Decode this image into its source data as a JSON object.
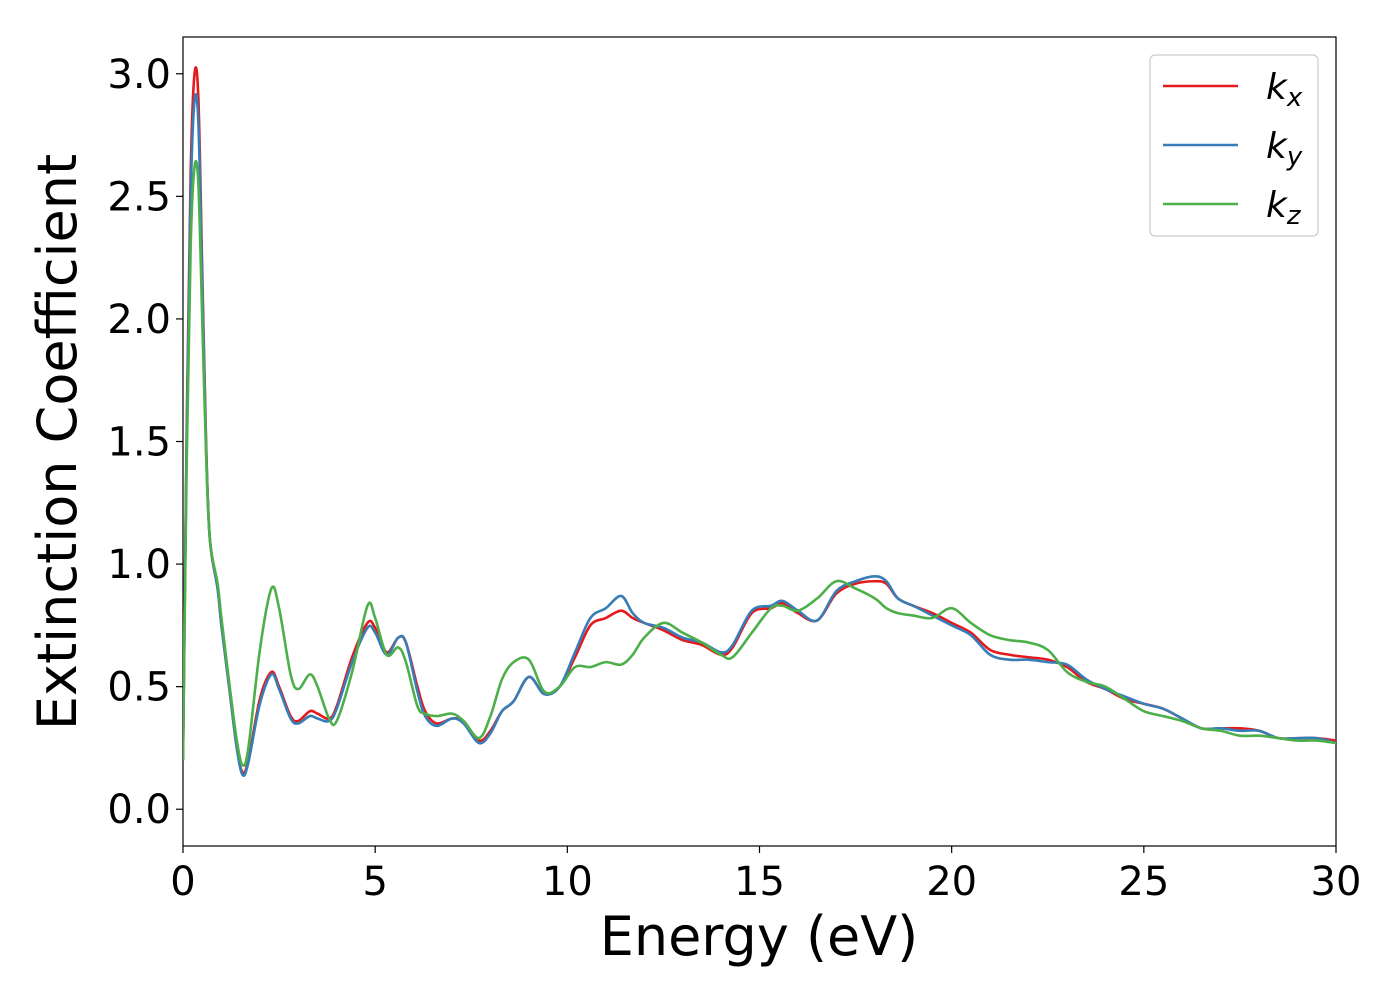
{
  "chart_data": {
    "type": "line",
    "title": "",
    "xlabel": "Energy (eV)",
    "ylabel": "Extinction Coefficient",
    "xlim": [
      0,
      30
    ],
    "ylim": [
      -0.15,
      3.15
    ],
    "xticks": [
      0,
      5,
      10,
      15,
      20,
      25,
      30
    ],
    "yticks": [
      0.0,
      0.5,
      1.0,
      1.5,
      2.0,
      2.5,
      3.0
    ],
    "xtick_labels": [
      "0",
      "5",
      "10",
      "15",
      "20",
      "25",
      "30"
    ],
    "ytick_labels": [
      "0.0",
      "0.5",
      "1.0",
      "1.5",
      "2.0",
      "2.5",
      "3.0"
    ],
    "grid": false,
    "legend_position": "top-right",
    "series": [
      {
        "name": "k_x",
        "label_base": "k",
        "label_sub": "x",
        "color": "#e41a1c",
        "points": [
          [
            0,
            0.2
          ],
          [
            0.1,
            1.6
          ],
          [
            0.2,
            2.6
          ],
          [
            0.3,
            3.0
          ],
          [
            0.4,
            2.9
          ],
          [
            0.5,
            2.2
          ],
          [
            0.6,
            1.5
          ],
          [
            0.7,
            1.1
          ],
          [
            0.9,
            0.9
          ],
          [
            1.0,
            0.75
          ],
          [
            1.2,
            0.5
          ],
          [
            1.4,
            0.25
          ],
          [
            1.55,
            0.15
          ],
          [
            1.7,
            0.2
          ],
          [
            2.0,
            0.45
          ],
          [
            2.3,
            0.56
          ],
          [
            2.5,
            0.5
          ],
          [
            2.8,
            0.38
          ],
          [
            3.0,
            0.36
          ],
          [
            3.3,
            0.4
          ],
          [
            3.5,
            0.39
          ],
          [
            3.8,
            0.37
          ],
          [
            4.0,
            0.42
          ],
          [
            4.4,
            0.62
          ],
          [
            4.8,
            0.76
          ],
          [
            5.0,
            0.74
          ],
          [
            5.3,
            0.64
          ],
          [
            5.6,
            0.7
          ],
          [
            5.8,
            0.68
          ],
          [
            6.1,
            0.5
          ],
          [
            6.3,
            0.4
          ],
          [
            6.6,
            0.35
          ],
          [
            7.0,
            0.37
          ],
          [
            7.3,
            0.36
          ],
          [
            7.7,
            0.28
          ],
          [
            8.0,
            0.32
          ],
          [
            8.3,
            0.4
          ],
          [
            8.6,
            0.44
          ],
          [
            9.0,
            0.54
          ],
          [
            9.4,
            0.47
          ],
          [
            9.8,
            0.5
          ],
          [
            10.2,
            0.62
          ],
          [
            10.6,
            0.75
          ],
          [
            11.0,
            0.78
          ],
          [
            11.4,
            0.81
          ],
          [
            11.7,
            0.78
          ],
          [
            12.0,
            0.76
          ],
          [
            12.5,
            0.73
          ],
          [
            13.0,
            0.69
          ],
          [
            13.5,
            0.67
          ],
          [
            14.0,
            0.63
          ],
          [
            14.3,
            0.66
          ],
          [
            14.8,
            0.8
          ],
          [
            15.3,
            0.82
          ],
          [
            15.6,
            0.84
          ],
          [
            16.0,
            0.8
          ],
          [
            16.5,
            0.77
          ],
          [
            17.0,
            0.88
          ],
          [
            17.5,
            0.92
          ],
          [
            18.0,
            0.93
          ],
          [
            18.3,
            0.92
          ],
          [
            18.6,
            0.86
          ],
          [
            19.0,
            0.83
          ],
          [
            19.5,
            0.8
          ],
          [
            20.0,
            0.76
          ],
          [
            20.5,
            0.72
          ],
          [
            21.0,
            0.65
          ],
          [
            21.5,
            0.63
          ],
          [
            22.0,
            0.62
          ],
          [
            22.5,
            0.61
          ],
          [
            23.0,
            0.58
          ],
          [
            23.5,
            0.52
          ],
          [
            24.0,
            0.49
          ],
          [
            24.5,
            0.45
          ],
          [
            25.0,
            0.43
          ],
          [
            25.5,
            0.41
          ],
          [
            26.0,
            0.37
          ],
          [
            26.5,
            0.33
          ],
          [
            27.0,
            0.33
          ],
          [
            27.5,
            0.33
          ],
          [
            28.0,
            0.32
          ],
          [
            28.5,
            0.29
          ],
          [
            29.0,
            0.29
          ],
          [
            29.5,
            0.29
          ],
          [
            30.0,
            0.28
          ]
        ]
      },
      {
        "name": "k_y",
        "label_base": "k",
        "label_sub": "y",
        "color": "#377eb8",
        "points": [
          [
            0,
            0.2
          ],
          [
            0.1,
            1.55
          ],
          [
            0.2,
            2.5
          ],
          [
            0.3,
            2.89
          ],
          [
            0.4,
            2.8
          ],
          [
            0.5,
            2.15
          ],
          [
            0.6,
            1.48
          ],
          [
            0.7,
            1.1
          ],
          [
            0.9,
            0.9
          ],
          [
            1.0,
            0.75
          ],
          [
            1.2,
            0.5
          ],
          [
            1.4,
            0.25
          ],
          [
            1.55,
            0.14
          ],
          [
            1.7,
            0.19
          ],
          [
            2.0,
            0.43
          ],
          [
            2.3,
            0.55
          ],
          [
            2.5,
            0.49
          ],
          [
            2.8,
            0.37
          ],
          [
            3.0,
            0.35
          ],
          [
            3.3,
            0.38
          ],
          [
            3.5,
            0.37
          ],
          [
            3.8,
            0.36
          ],
          [
            4.0,
            0.41
          ],
          [
            4.4,
            0.6
          ],
          [
            4.8,
            0.74
          ],
          [
            5.0,
            0.72
          ],
          [
            5.3,
            0.63
          ],
          [
            5.6,
            0.7
          ],
          [
            5.8,
            0.68
          ],
          [
            6.1,
            0.48
          ],
          [
            6.3,
            0.38
          ],
          [
            6.6,
            0.34
          ],
          [
            7.0,
            0.37
          ],
          [
            7.3,
            0.35
          ],
          [
            7.7,
            0.27
          ],
          [
            8.0,
            0.31
          ],
          [
            8.3,
            0.4
          ],
          [
            8.6,
            0.44
          ],
          [
            9.0,
            0.54
          ],
          [
            9.4,
            0.47
          ],
          [
            9.8,
            0.5
          ],
          [
            10.2,
            0.64
          ],
          [
            10.6,
            0.78
          ],
          [
            11.0,
            0.82
          ],
          [
            11.4,
            0.87
          ],
          [
            11.7,
            0.8
          ],
          [
            12.0,
            0.76
          ],
          [
            12.5,
            0.74
          ],
          [
            13.0,
            0.7
          ],
          [
            13.5,
            0.68
          ],
          [
            14.0,
            0.64
          ],
          [
            14.3,
            0.67
          ],
          [
            14.8,
            0.81
          ],
          [
            15.3,
            0.83
          ],
          [
            15.6,
            0.85
          ],
          [
            16.0,
            0.81
          ],
          [
            16.5,
            0.77
          ],
          [
            17.0,
            0.89
          ],
          [
            17.5,
            0.93
          ],
          [
            18.0,
            0.95
          ],
          [
            18.3,
            0.93
          ],
          [
            18.6,
            0.86
          ],
          [
            19.0,
            0.83
          ],
          [
            19.5,
            0.79
          ],
          [
            20.0,
            0.75
          ],
          [
            20.5,
            0.71
          ],
          [
            21.0,
            0.63
          ],
          [
            21.5,
            0.61
          ],
          [
            22.0,
            0.61
          ],
          [
            22.5,
            0.6
          ],
          [
            23.0,
            0.59
          ],
          [
            23.5,
            0.53
          ],
          [
            24.0,
            0.49
          ],
          [
            24.5,
            0.46
          ],
          [
            25.0,
            0.43
          ],
          [
            25.5,
            0.41
          ],
          [
            26.0,
            0.37
          ],
          [
            26.5,
            0.33
          ],
          [
            27.0,
            0.33
          ],
          [
            27.5,
            0.32
          ],
          [
            28.0,
            0.32
          ],
          [
            28.5,
            0.29
          ],
          [
            29.0,
            0.29
          ],
          [
            29.5,
            0.29
          ],
          [
            30.0,
            0.27
          ]
        ]
      },
      {
        "name": "k_z",
        "label_base": "k",
        "label_sub": "z",
        "color": "#4daf4a",
        "points": [
          [
            0,
            0.2
          ],
          [
            0.1,
            1.45
          ],
          [
            0.2,
            2.3
          ],
          [
            0.3,
            2.62
          ],
          [
            0.4,
            2.55
          ],
          [
            0.5,
            2.0
          ],
          [
            0.6,
            1.45
          ],
          [
            0.7,
            1.1
          ],
          [
            0.9,
            0.92
          ],
          [
            1.0,
            0.78
          ],
          [
            1.2,
            0.52
          ],
          [
            1.4,
            0.28
          ],
          [
            1.55,
            0.18
          ],
          [
            1.7,
            0.25
          ],
          [
            2.0,
            0.65
          ],
          [
            2.3,
            0.9
          ],
          [
            2.5,
            0.82
          ],
          [
            2.8,
            0.55
          ],
          [
            3.0,
            0.49
          ],
          [
            3.3,
            0.55
          ],
          [
            3.5,
            0.5
          ],
          [
            3.8,
            0.37
          ],
          [
            4.0,
            0.36
          ],
          [
            4.4,
            0.56
          ],
          [
            4.8,
            0.83
          ],
          [
            5.0,
            0.78
          ],
          [
            5.3,
            0.63
          ],
          [
            5.6,
            0.66
          ],
          [
            5.8,
            0.6
          ],
          [
            6.1,
            0.42
          ],
          [
            6.3,
            0.39
          ],
          [
            6.6,
            0.38
          ],
          [
            7.0,
            0.39
          ],
          [
            7.3,
            0.36
          ],
          [
            7.7,
            0.29
          ],
          [
            8.0,
            0.38
          ],
          [
            8.3,
            0.53
          ],
          [
            8.6,
            0.6
          ],
          [
            9.0,
            0.61
          ],
          [
            9.4,
            0.48
          ],
          [
            9.8,
            0.5
          ],
          [
            10.2,
            0.58
          ],
          [
            10.6,
            0.58
          ],
          [
            11.0,
            0.6
          ],
          [
            11.4,
            0.59
          ],
          [
            11.7,
            0.63
          ],
          [
            12.0,
            0.7
          ],
          [
            12.5,
            0.76
          ],
          [
            13.0,
            0.72
          ],
          [
            13.5,
            0.68
          ],
          [
            14.0,
            0.63
          ],
          [
            14.3,
            0.62
          ],
          [
            14.8,
            0.72
          ],
          [
            15.3,
            0.82
          ],
          [
            15.6,
            0.83
          ],
          [
            16.0,
            0.81
          ],
          [
            16.5,
            0.86
          ],
          [
            17.0,
            0.93
          ],
          [
            17.5,
            0.9
          ],
          [
            18.0,
            0.86
          ],
          [
            18.3,
            0.82
          ],
          [
            18.6,
            0.8
          ],
          [
            19.0,
            0.79
          ],
          [
            19.5,
            0.78
          ],
          [
            20.0,
            0.82
          ],
          [
            20.5,
            0.76
          ],
          [
            21.0,
            0.71
          ],
          [
            21.5,
            0.69
          ],
          [
            22.0,
            0.68
          ],
          [
            22.5,
            0.65
          ],
          [
            23.0,
            0.56
          ],
          [
            23.5,
            0.52
          ],
          [
            24.0,
            0.5
          ],
          [
            24.5,
            0.45
          ],
          [
            25.0,
            0.4
          ],
          [
            25.5,
            0.38
          ],
          [
            26.0,
            0.36
          ],
          [
            26.5,
            0.33
          ],
          [
            27.0,
            0.32
          ],
          [
            27.5,
            0.3
          ],
          [
            28.0,
            0.3
          ],
          [
            28.5,
            0.29
          ],
          [
            29.0,
            0.28
          ],
          [
            29.5,
            0.28
          ],
          [
            30.0,
            0.27
          ]
        ]
      }
    ]
  }
}
